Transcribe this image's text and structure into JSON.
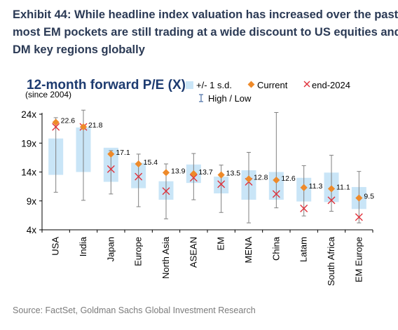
{
  "header": {
    "title": "Exhibit 44: While headline index valuation has increased over the past\nmost EM pockets are still trading at a wide discount to US equities and\nDM key regions globally"
  },
  "footer": {
    "source": "Source: FactSet, Goldman Sachs Global Investment Research"
  },
  "colors": {
    "band": "#c9e5f7",
    "whisker": "#808080",
    "current": "#ee8a2a",
    "end2024": "#e0303a",
    "title": "#1d3b70"
  },
  "chart_data": {
    "type": "range-dot",
    "title": "12-month forward P/E (X)",
    "subtitle": "(since 2004)",
    "legend": {
      "band": "+/- 1 s.d.",
      "current": "Current",
      "end2024": "end-2024",
      "highlow": "High / Low"
    },
    "y_ticks": [
      "24x",
      "19x",
      "14x",
      "9x",
      "4x"
    ],
    "ylim": [
      4,
      24
    ],
    "categories": [
      "USA",
      "India",
      "Japan",
      "Europe",
      "North Asia",
      "ASEAN",
      "EM",
      "MENA",
      "China",
      "Latam",
      "South Africa",
      "EM Europe"
    ],
    "current": [
      22.6,
      21.8,
      17.1,
      15.4,
      13.9,
      13.7,
      13.5,
      12.8,
      12.6,
      11.3,
      11.1,
      9.5
    ],
    "current_labels": [
      "22.6",
      "21.8",
      "17.1",
      "15.4",
      "13.9",
      "13.7",
      "13.5",
      "12.8",
      "12.6",
      "11.3",
      "11.1",
      "9.5"
    ],
    "end_2024": [
      21.8,
      21.8,
      14.5,
      13.2,
      10.7,
      13.0,
      11.9,
      12.3,
      10.2,
      7.7,
      9.1,
      6.2
    ],
    "band_low": [
      13.5,
      14.0,
      12.3,
      11.2,
      9.2,
      12.1,
      10.3,
      9.2,
      9.2,
      8.9,
      8.8,
      7.6
    ],
    "band_high": [
      19.8,
      21.7,
      18.2,
      15.6,
      12.4,
      15.3,
      13.2,
      14.3,
      14.0,
      13.0,
      13.9,
      11.4
    ],
    "high": [
      23.4,
      24.7,
      17.7,
      17.1,
      15.4,
      17.2,
      15.2,
      17.4,
      24.3,
      15.1,
      16.9,
      14.1
    ],
    "low": [
      10.5,
      9.1,
      10.2,
      8.0,
      5.9,
      9.2,
      7.0,
      5.2,
      7.8,
      6.4,
      7.2,
      5.2
    ],
    "grid": false,
    "legend_position": "top"
  }
}
